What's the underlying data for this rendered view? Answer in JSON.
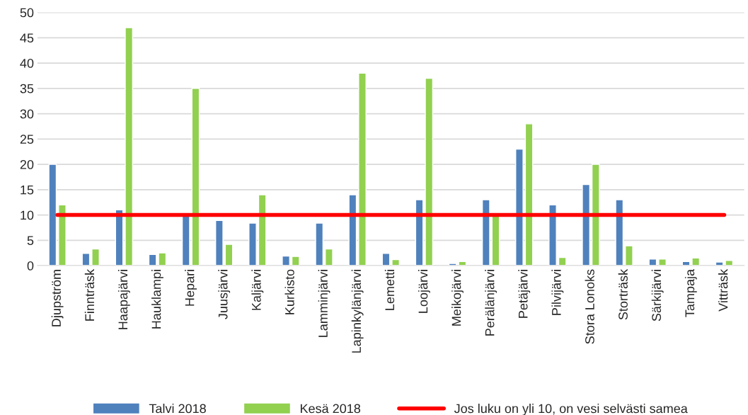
{
  "chart_data": {
    "type": "bar",
    "categories": [
      "Djupström",
      "Finnträsk",
      "Haapajärvi",
      "Hauklampi",
      "Hepari",
      "Juusjärvi",
      "Kaljärvi",
      "Kurkisto",
      "Lamminjärvi",
      "Lapinkylänjärvi",
      "Lemetti",
      "Loojärvi",
      "Meikojärvi",
      "Perälänjärvi",
      "Petäjärvi",
      "Pilvijärvi",
      "Stora Lonoks",
      "Storträsk",
      "Särkijärvi",
      "Tampaja",
      "Vitträsk"
    ],
    "series": [
      {
        "name": "Talvi 2018",
        "color": "#4f81bd",
        "values": [
          20,
          2.4,
          11,
          2.2,
          9.8,
          8.9,
          8.4,
          1.9,
          8.4,
          14,
          2.4,
          13,
          0.4,
          13,
          23,
          12,
          16,
          13,
          1.3,
          0.8,
          0.7
        ]
      },
      {
        "name": "Kesä 2018",
        "color": "#92d050",
        "values": [
          12,
          3.3,
          47,
          2.5,
          35,
          4.2,
          14,
          1.8,
          3.3,
          38,
          1.2,
          37,
          0.8,
          9.8,
          28,
          1.6,
          20,
          3.9,
          1.3,
          1.5,
          1.0
        ]
      },
      {
        "name": "Jos luku on yli 10, on vesi selvästi samea",
        "type": "line",
        "color": "#ff0000",
        "values": [
          10,
          10,
          10,
          10,
          10,
          10,
          10,
          10,
          10,
          10,
          10,
          10,
          10,
          10,
          10,
          10,
          10,
          10,
          10,
          10,
          10
        ]
      }
    ],
    "ylim": [
      0,
      50
    ],
    "yticks": [
      0,
      5,
      10,
      15,
      20,
      25,
      30,
      35,
      40,
      45,
      50
    ],
    "grid": "y",
    "legend": "bottom"
  }
}
